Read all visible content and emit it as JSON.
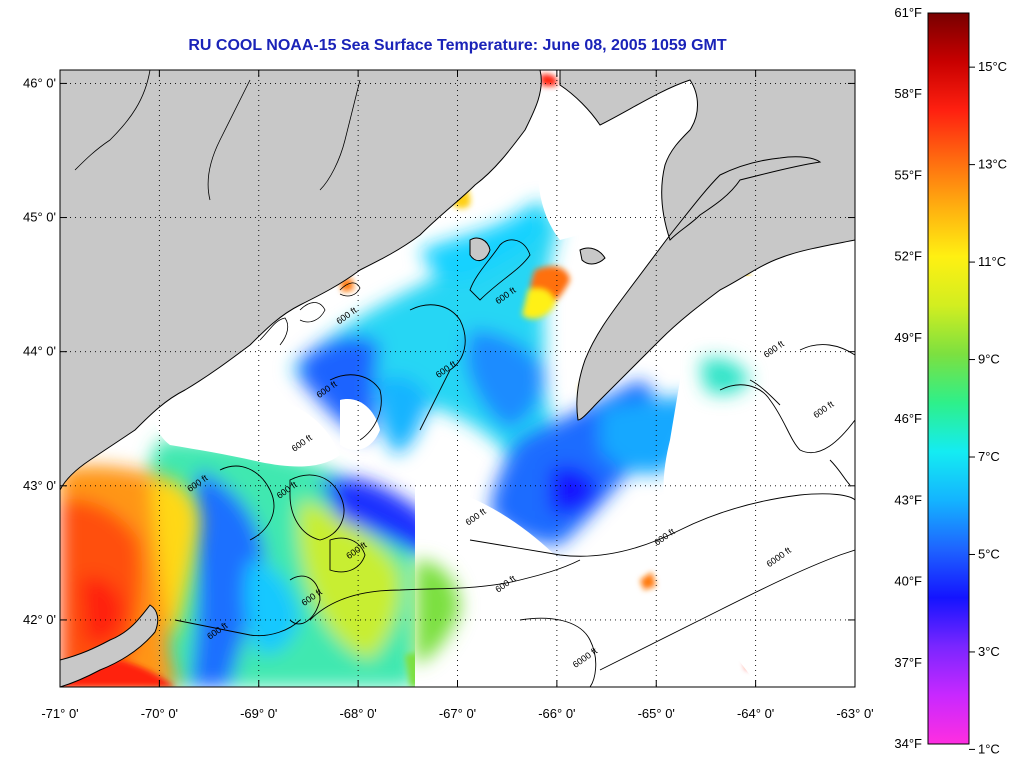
{
  "title": "RU COOL  NOAA-15  Sea Surface Temperature:  June 08, 2005 1059 GMT",
  "map": {
    "lon_range": [
      -71,
      -63
    ],
    "lat_range": [
      41.5,
      46.1
    ],
    "lat_ticks": [
      {
        "value": 46,
        "label": "46° 0'"
      },
      {
        "value": 45,
        "label": "45° 0'"
      },
      {
        "value": 44,
        "label": "44° 0'"
      },
      {
        "value": 43,
        "label": "43° 0'"
      },
      {
        "value": 42,
        "label": "42° 0'"
      }
    ],
    "lon_ticks": [
      {
        "value": -71,
        "label": "-71° 0'"
      },
      {
        "value": -70,
        "label": "-70° 0'"
      },
      {
        "value": -69,
        "label": "-69° 0'"
      },
      {
        "value": -68,
        "label": "-68° 0'"
      },
      {
        "value": -67,
        "label": "-67° 0'"
      },
      {
        "value": -66,
        "label": "-66° 0'"
      },
      {
        "value": -65,
        "label": "-65° 0'"
      },
      {
        "value": -64,
        "label": "-64° 0'"
      },
      {
        "value": -63,
        "label": "-63° 0'"
      }
    ],
    "grid": "dotted",
    "land_color": "#c8c8c8",
    "no_data_color": "#ffffff",
    "contour_labels": [
      {
        "text": "600 ft",
        "lon": -68.1,
        "lat": 44.25
      },
      {
        "text": "600 ft",
        "lon": -66.5,
        "lat": 44.4
      },
      {
        "text": "600 ft",
        "lon": -68.3,
        "lat": 43.7
      },
      {
        "text": "600 ft",
        "lon": -67.1,
        "lat": 43.85
      },
      {
        "text": "600 ft",
        "lon": -68.55,
        "lat": 43.3
      },
      {
        "text": "600 ft",
        "lon": -69.6,
        "lat": 43.0
      },
      {
        "text": "600 ft",
        "lon": -68.7,
        "lat": 42.95
      },
      {
        "text": "600 ft",
        "lon": -66.8,
        "lat": 42.75
      },
      {
        "text": "600 ft",
        "lon": -68.0,
        "lat": 42.5
      },
      {
        "text": "600 ft",
        "lon": -68.45,
        "lat": 42.15
      },
      {
        "text": "600 ft",
        "lon": -69.4,
        "lat": 41.9
      },
      {
        "text": "600 ft",
        "lon": -66.5,
        "lat": 42.25
      },
      {
        "text": "600 ft",
        "lon": -64.9,
        "lat": 42.6
      },
      {
        "text": "600 ft",
        "lon": -63.8,
        "lat": 44.0
      },
      {
        "text": "600 ft",
        "lon": -63.3,
        "lat": 43.55
      },
      {
        "text": "6000 ft",
        "lon": -63.75,
        "lat": 42.45
      },
      {
        "text": "6000 ft",
        "lon": -65.7,
        "lat": 41.7
      }
    ]
  },
  "colorbar": {
    "fahrenheit": [
      {
        "value": 61,
        "label": "61°F"
      },
      {
        "value": 58,
        "label": "58°F"
      },
      {
        "value": 55,
        "label": "55°F"
      },
      {
        "value": 52,
        "label": "52°F"
      },
      {
        "value": 49,
        "label": "49°F"
      },
      {
        "value": 46,
        "label": "46°F"
      },
      {
        "value": 43,
        "label": "43°F"
      },
      {
        "value": 40,
        "label": "40°F"
      },
      {
        "value": 37,
        "label": "37°F"
      },
      {
        "value": 34,
        "label": "34°F"
      }
    ],
    "celsius": [
      {
        "value": 15,
        "label": "15°C"
      },
      {
        "value": 13,
        "label": "13°C"
      },
      {
        "value": 11,
        "label": "11°C"
      },
      {
        "value": 9,
        "label": "9°C"
      },
      {
        "value": 7,
        "label": "7°C"
      },
      {
        "value": 5,
        "label": "5°C"
      },
      {
        "value": 3,
        "label": "3°C"
      },
      {
        "value": 1,
        "label": "1°C"
      }
    ],
    "colors": [
      "#ff2ee0",
      "#c828ff",
      "#7a26ff",
      "#1414ff",
      "#1e64ff",
      "#14b4ff",
      "#14ecf2",
      "#2ef08a",
      "#7ce040",
      "#d2ee20",
      "#fff012",
      "#ffb010",
      "#ff6a10",
      "#ff2010",
      "#c80000",
      "#780000"
    ]
  }
}
